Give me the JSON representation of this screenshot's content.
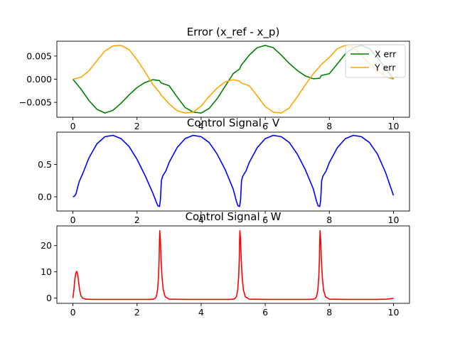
{
  "chart_data": [
    {
      "type": "line",
      "title": "Error (x_ref - x_p)",
      "xlabel": "",
      "ylabel": "",
      "xlim": [
        -0.5,
        10.5
      ],
      "ylim": [
        -0.0082,
        0.0082
      ],
      "xticks": [
        0,
        2,
        4,
        6,
        8,
        10
      ],
      "xtick_labels": [
        "0",
        "2",
        "4",
        "6",
        "8",
        "10"
      ],
      "yticks": [
        -0.005,
        0,
        0.005
      ],
      "ytick_labels": [
        "−0.005",
        "0.000",
        "0.005"
      ],
      "grid": false,
      "legend_position": "upper-right",
      "series": [
        {
          "name": "X err",
          "color": "#008000",
          "x": [
            0,
            0.25,
            0.5,
            0.75,
            1.0,
            1.25,
            1.5,
            1.75,
            2.0,
            2.25,
            2.5,
            2.7,
            2.75,
            3.0,
            3.25,
            3.5,
            3.75,
            4.0,
            4.25,
            4.5,
            4.75,
            5.0,
            5.2,
            5.25,
            5.5,
            5.75,
            6.0,
            6.25,
            6.5,
            6.75,
            7.0,
            7.25,
            7.5,
            7.7,
            7.75,
            8.0,
            8.25,
            8.5,
            8.75,
            9.0,
            9.25,
            9.5,
            9.75,
            10.0
          ],
          "y": [
            0.0,
            -0.0021,
            -0.0046,
            -0.0065,
            -0.0073,
            -0.0067,
            -0.0052,
            -0.0034,
            -0.0018,
            -0.0007,
            -0.0001,
            -0.0003,
            -0.0008,
            -0.0014,
            -0.0038,
            -0.0061,
            -0.0071,
            -0.0073,
            -0.0063,
            -0.0042,
            -0.0015,
            0.0012,
            0.0022,
            0.003,
            0.0052,
            0.0068,
            0.0073,
            0.0068,
            0.0052,
            0.0034,
            0.0019,
            0.0007,
            0.0001,
            0.0002,
            0.0008,
            0.0012,
            0.0033,
            0.0055,
            0.0068,
            0.0073,
            0.0066,
            0.0047,
            0.0024,
            0.0
          ]
        },
        {
          "name": "Y err",
          "color": "#FFA500",
          "x": [
            0,
            0.25,
            0.5,
            0.75,
            1.0,
            1.25,
            1.5,
            1.75,
            2.0,
            2.25,
            2.5,
            2.7,
            2.75,
            3.0,
            3.25,
            3.5,
            3.75,
            4.0,
            4.25,
            4.5,
            4.75,
            5.0,
            5.2,
            5.25,
            5.5,
            5.75,
            6.0,
            6.25,
            6.5,
            6.75,
            7.0,
            7.25,
            7.5,
            7.7,
            7.75,
            8.0,
            8.25,
            8.5,
            8.75,
            9.0,
            9.25,
            9.5,
            9.75,
            10.0
          ],
          "y": [
            0.0,
            0.0004,
            0.0018,
            0.004,
            0.0061,
            0.0072,
            0.0073,
            0.0064,
            0.0042,
            0.0016,
            -0.0012,
            -0.0028,
            -0.0034,
            -0.0053,
            -0.0068,
            -0.0073,
            -0.0071,
            -0.0058,
            -0.0037,
            -0.0019,
            -0.0006,
            -0.0001,
            -0.0004,
            -0.0008,
            -0.0014,
            -0.0036,
            -0.0059,
            -0.0071,
            -0.0073,
            -0.0062,
            -0.0038,
            -0.0012,
            0.0012,
            0.0027,
            0.0032,
            0.0047,
            0.0066,
            0.0073,
            0.0068,
            0.0052,
            0.0034,
            0.0018,
            0.0006,
            0.0
          ]
        }
      ]
    },
    {
      "type": "line",
      "title": "Control Signal - V",
      "xlabel": "",
      "ylabel": "",
      "xlim": [
        -0.5,
        10.5
      ],
      "ylim": [
        -0.22,
        1.0
      ],
      "xticks": [
        0,
        2,
        4,
        6,
        8,
        10
      ],
      "xtick_labels": [
        "0",
        "2",
        "4",
        "6",
        "8",
        "10"
      ],
      "yticks": [
        0,
        0.5
      ],
      "ytick_labels": [
        "0.0",
        "0.5"
      ],
      "grid": false,
      "series": [
        {
          "name": "",
          "color": "#0000FF",
          "x": [
            0,
            0.05,
            0.1,
            0.15,
            0.2,
            0.3,
            0.5,
            0.75,
            1.0,
            1.25,
            1.5,
            1.75,
            2.0,
            2.25,
            2.5,
            2.6,
            2.65,
            2.7,
            2.73,
            2.76,
            2.8,
            2.9,
            3.0,
            3.25,
            3.5,
            3.75,
            4.0,
            4.25,
            4.5,
            4.75,
            5.0,
            5.1,
            5.15,
            5.2,
            5.23,
            5.26,
            5.3,
            5.4,
            5.5,
            5.75,
            6.0,
            6.25,
            6.5,
            6.75,
            7.0,
            7.25,
            7.5,
            7.6,
            7.65,
            7.7,
            7.73,
            7.76,
            7.8,
            7.9,
            8.0,
            8.25,
            8.5,
            8.75,
            9.0,
            9.25,
            9.5,
            9.75,
            10.0
          ],
          "y": [
            0.0,
            0.01,
            0.05,
            0.15,
            0.24,
            0.35,
            0.6,
            0.82,
            0.93,
            0.95,
            0.9,
            0.78,
            0.58,
            0.33,
            0.05,
            -0.08,
            -0.14,
            -0.15,
            -0.05,
            0.25,
            0.32,
            0.4,
            0.53,
            0.76,
            0.9,
            0.95,
            0.93,
            0.84,
            0.66,
            0.42,
            0.12,
            -0.07,
            -0.14,
            -0.15,
            -0.05,
            0.25,
            0.32,
            0.4,
            0.53,
            0.76,
            0.9,
            0.95,
            0.93,
            0.84,
            0.66,
            0.42,
            0.12,
            -0.07,
            -0.14,
            -0.15,
            -0.05,
            0.25,
            0.32,
            0.4,
            0.53,
            0.76,
            0.9,
            0.95,
            0.93,
            0.84,
            0.66,
            0.38,
            0.02
          ]
        }
      ]
    },
    {
      "type": "line",
      "title": "Control Signal - W",
      "xlabel": "",
      "ylabel": "",
      "xlim": [
        -0.5,
        10.5
      ],
      "ylim": [
        -2.0,
        27.5
      ],
      "xticks": [
        0,
        2,
        4,
        6,
        8,
        10
      ],
      "xtick_labels": [
        "0",
        "2",
        "4",
        "6",
        "8",
        "10"
      ],
      "yticks": [
        0,
        10,
        20
      ],
      "ytick_labels": [
        "0",
        "10",
        "20"
      ],
      "grid": false,
      "series": [
        {
          "name": "",
          "color": "#FF0000",
          "x": [
            0,
            0.03,
            0.06,
            0.09,
            0.12,
            0.15,
            0.18,
            0.21,
            0.25,
            0.3,
            0.4,
            0.6,
            1.0,
            1.5,
            2.0,
            2.4,
            2.5,
            2.55,
            2.6,
            2.64,
            2.67,
            2.69,
            2.7,
            2.71,
            2.73,
            2.75,
            2.78,
            2.82,
            2.88,
            3.0,
            3.5,
            4.0,
            4.5,
            4.9,
            5.0,
            5.05,
            5.1,
            5.14,
            5.17,
            5.19,
            5.2,
            5.21,
            5.23,
            5.25,
            5.28,
            5.32,
            5.38,
            5.5,
            6.0,
            6.5,
            7.0,
            7.4,
            7.5,
            7.55,
            7.6,
            7.64,
            7.67,
            7.69,
            7.7,
            7.71,
            7.73,
            7.75,
            7.78,
            7.82,
            7.88,
            8.0,
            8.5,
            9.0,
            9.5,
            9.8,
            10.0
          ],
          "y": [
            0.0,
            3.0,
            7.0,
            9.5,
            10.2,
            9.0,
            6.0,
            3.0,
            1.0,
            0.0,
            -0.4,
            -0.5,
            -0.5,
            -0.5,
            -0.5,
            -0.5,
            -0.4,
            -0.2,
            0.5,
            3.0,
            8.0,
            15.0,
            22.0,
            25.7,
            22.0,
            15.0,
            8.0,
            3.0,
            0.5,
            -0.4,
            -0.5,
            -0.5,
            -0.5,
            -0.5,
            -0.4,
            -0.2,
            0.5,
            3.0,
            8.0,
            15.0,
            22.0,
            25.7,
            22.0,
            15.0,
            8.0,
            3.0,
            0.5,
            -0.4,
            -0.5,
            -0.5,
            -0.5,
            -0.5,
            -0.4,
            -0.2,
            0.5,
            3.0,
            8.0,
            15.0,
            22.0,
            25.7,
            22.0,
            15.0,
            8.0,
            3.0,
            0.5,
            -0.4,
            -0.5,
            -0.5,
            -0.5,
            -0.4,
            -0.1
          ]
        }
      ]
    }
  ]
}
